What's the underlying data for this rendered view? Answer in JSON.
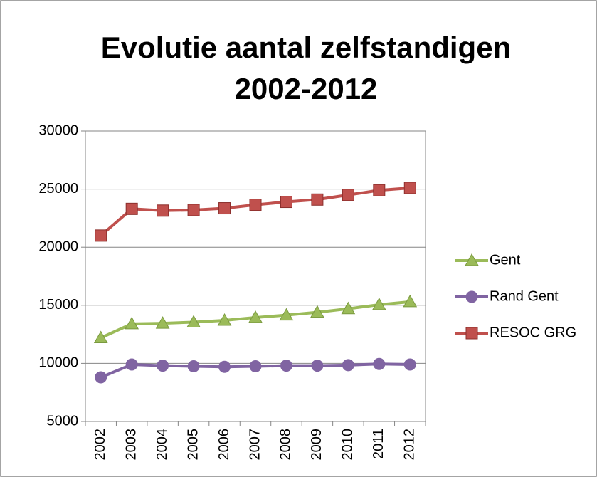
{
  "chart_data": {
    "type": "line",
    "title": "Evolutie aantal zelfstandigen",
    "subtitle": "2002-2012",
    "categories": [
      "2002",
      "2003",
      "2004",
      "2005",
      "2006",
      "2007",
      "2008",
      "2009",
      "2010",
      "2011",
      "2012"
    ],
    "series": [
      {
        "name": "Gent",
        "color": "#9bbb59",
        "marker": "triangle",
        "values": [
          12200,
          13400,
          13450,
          13550,
          13700,
          13950,
          14150,
          14400,
          14700,
          15050,
          15300
        ]
      },
      {
        "name": "Rand Gent",
        "color": "#8064a2",
        "marker": "circle",
        "values": [
          8800,
          9900,
          9800,
          9750,
          9700,
          9750,
          9800,
          9800,
          9850,
          9950,
          9900
        ]
      },
      {
        "name": "RESOC GRG",
        "color": "#c0504d",
        "marker": "square",
        "values": [
          21000,
          23300,
          23150,
          23200,
          23350,
          23650,
          23900,
          24100,
          24500,
          24900,
          25100
        ]
      }
    ],
    "ylim": [
      5000,
      30000
    ],
    "yticks": [
      5000,
      10000,
      15000,
      20000,
      25000,
      30000
    ],
    "grid": true,
    "legend": "right"
  }
}
